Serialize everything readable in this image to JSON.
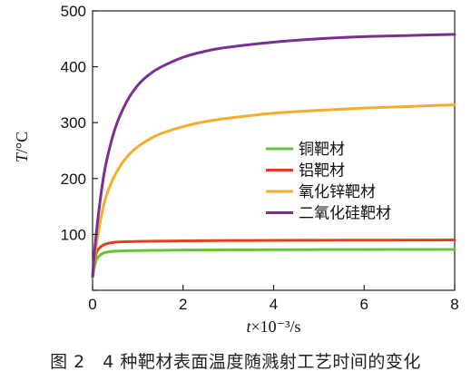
{
  "caption": "图 2　4 种靶材表面温度随溅射工艺时间的变化",
  "chart_data": {
    "type": "line",
    "xlabel_var": "t",
    "xlabel_rest": "×10⁻³/s",
    "ylabel_var": "T",
    "ylabel_rest": "/°C",
    "xlim": [
      0,
      8
    ],
    "ylim": [
      0,
      500
    ],
    "x_ticks": [
      0,
      2,
      4,
      6,
      8
    ],
    "x_tick_labels": [
      "0",
      "2",
      "4",
      "6",
      "8"
    ],
    "y_ticks": [
      0,
      100,
      200,
      300,
      400,
      500
    ],
    "y_tick_labels": [
      "",
      "100",
      "200",
      "300",
      "400",
      "500"
    ],
    "grid": false,
    "legend_position": "center-right",
    "series": [
      {
        "name": "铜靶材",
        "color": "#5fc738",
        "x": [
          0,
          0.05,
          0.1,
          0.2,
          0.3,
          0.5,
          0.75,
          1,
          1.5,
          2,
          3,
          4,
          5,
          6,
          7,
          8
        ],
        "y": [
          22,
          45,
          57,
          65,
          68,
          70,
          70.6,
          71,
          71.5,
          72,
          72.4,
          72.6,
          72.8,
          72.9,
          73,
          73
        ]
      },
      {
        "name": "铝靶材",
        "color": "#e0401c",
        "x": [
          0,
          0.05,
          0.1,
          0.2,
          0.3,
          0.5,
          0.75,
          1,
          1.5,
          2,
          3,
          4,
          5,
          6,
          7,
          8
        ],
        "y": [
          25,
          55,
          70,
          79,
          83,
          86,
          87,
          87.5,
          88,
          88.5,
          89,
          89.3,
          89.5,
          89.7,
          89.8,
          90
        ]
      },
      {
        "name": "氧化锌靶材",
        "color": "#f6ac28",
        "x": [
          0,
          0.05,
          0.1,
          0.2,
          0.3,
          0.5,
          0.75,
          1,
          1.25,
          1.5,
          2,
          2.5,
          3,
          4,
          5,
          6,
          7,
          8
        ],
        "y": [
          25,
          60,
          90,
          135,
          168,
          207,
          238,
          257,
          270,
          280,
          293,
          302,
          308,
          317,
          322,
          326,
          329,
          332
        ]
      },
      {
        "name": "二氧化硅靶材",
        "color": "#7b2f92",
        "x": [
          0,
          0.05,
          0.1,
          0.2,
          0.3,
          0.5,
          0.75,
          1,
          1.25,
          1.5,
          2,
          2.5,
          3,
          4,
          5,
          6,
          7,
          8
        ],
        "y": [
          25,
          75,
          115,
          180,
          228,
          290,
          337,
          367,
          386,
          399,
          417,
          428,
          435,
          444,
          450,
          454,
          456,
          458
        ]
      }
    ]
  }
}
